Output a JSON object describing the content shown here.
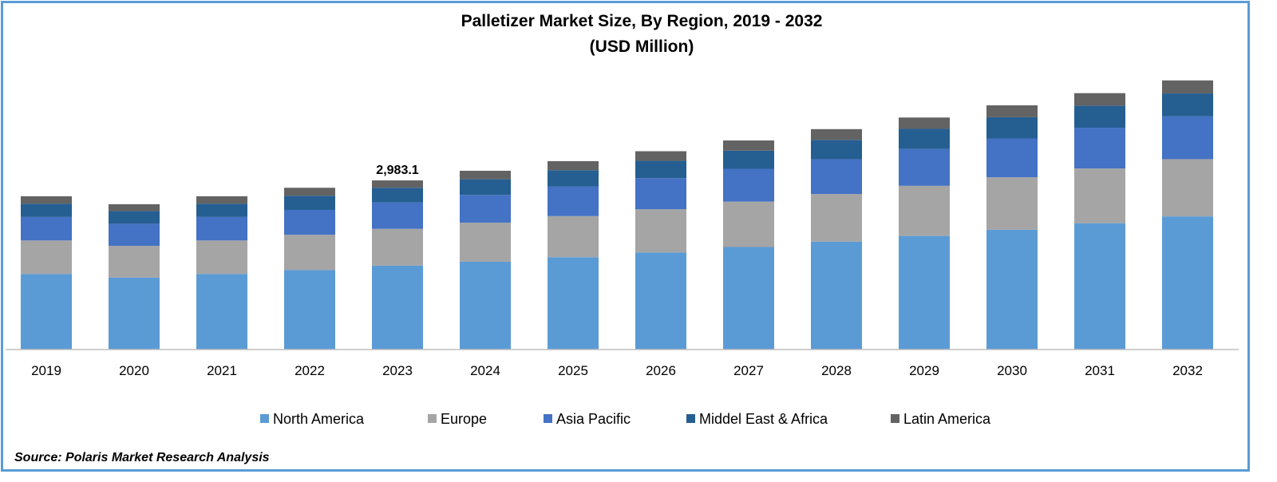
{
  "chart_data": {
    "type": "bar",
    "stacked": true,
    "title": "Palletizer Market Size, By Region, 2019 - 2032",
    "subtitle": "(USD Million)",
    "categories": [
      "2019",
      "2020",
      "2021",
      "2022",
      "2023",
      "2024",
      "2025",
      "2026",
      "2027",
      "2028",
      "2029",
      "2030",
      "2031",
      "2032"
    ],
    "series": [
      {
        "name": "North America",
        "color": "#5b9bd5",
        "values": [
          1335,
          1270,
          1335,
          1405,
          1480,
          1550,
          1630,
          1715,
          1810,
          1905,
          2005,
          2115,
          2230,
          2350
        ]
      },
      {
        "name": "Europe",
        "color": "#a5a5a5",
        "values": [
          590,
          560,
          590,
          620,
          650,
          690,
          725,
          760,
          800,
          840,
          885,
          925,
          965,
          1010
        ]
      },
      {
        "name": "Asia Pacific",
        "color": "#4472c4",
        "values": [
          415,
          390,
          415,
          440,
          465,
          490,
          520,
          550,
          580,
          615,
          650,
          685,
          720,
          755
        ]
      },
      {
        "name": "Middel East & Africa",
        "color": "#255e91",
        "values": [
          235,
          225,
          235,
          250,
          260,
          275,
          290,
          305,
          320,
          340,
          355,
          375,
          390,
          405
        ]
      },
      {
        "name": "Latin America",
        "color": "#636363",
        "values": [
          130,
          120,
          130,
          140,
          130,
          150,
          160,
          170,
          180,
          190,
          200,
          210,
          220,
          230
        ]
      }
    ],
    "data_labels": [
      {
        "category": "2023",
        "text": "2,983.1"
      }
    ],
    "ylim": [
      0,
      5000
    ],
    "grid": false,
    "legend": "bottom"
  },
  "source": "Source: Polaris Market Research Analysis"
}
